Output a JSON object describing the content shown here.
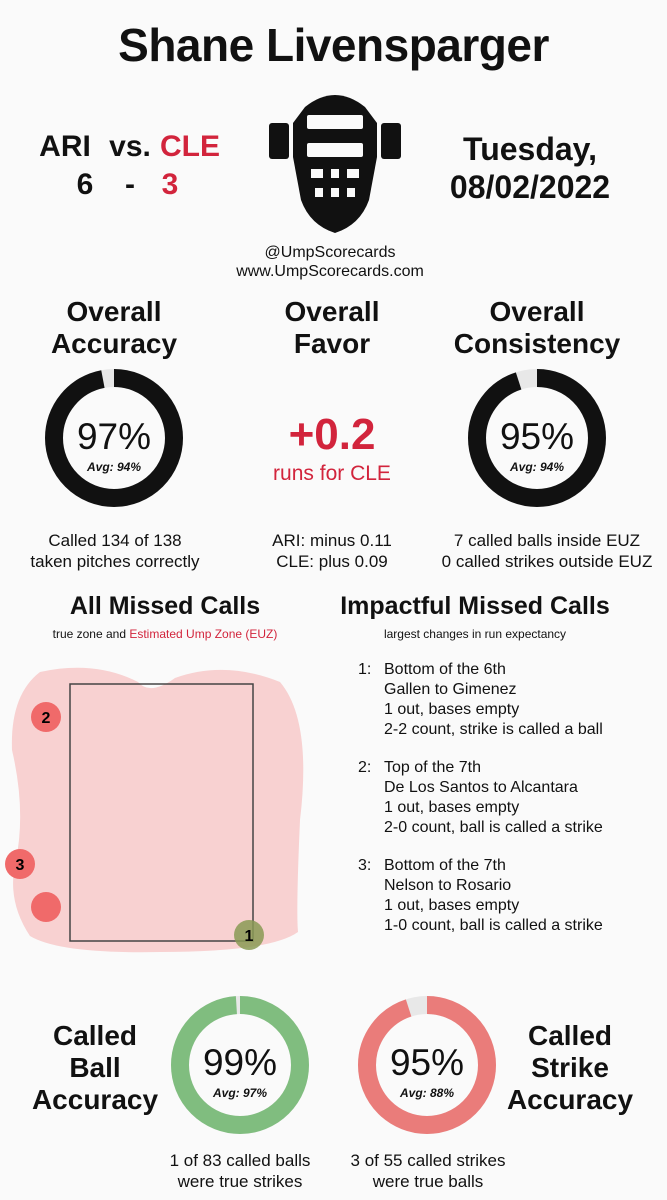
{
  "umpire": "Shane Livensparger",
  "game": {
    "away_team": "ARI",
    "vs": "vs.",
    "home_team": "CLE",
    "away_score": "6",
    "dash": "-",
    "home_score": "3",
    "day": "Tuesday,",
    "date": "08/02/2022"
  },
  "credits": {
    "handle": "@UmpScorecards",
    "site": "www.UmpScorecards.com"
  },
  "accuracy": {
    "title1": "Overall",
    "title2": "Accuracy",
    "value": "97%",
    "avg": "Avg: 94%",
    "fraction": 0.97,
    "desc1": "Called 134 of 138",
    "desc2": "taken pitches correctly"
  },
  "favor": {
    "title1": "Overall",
    "title2": "Favor",
    "value": "+0.2",
    "sub": "runs for CLE",
    "desc1": "ARI: minus 0.11",
    "desc2": "CLE: plus 0.09"
  },
  "consistency": {
    "title1": "Overall",
    "title2": "Consistency",
    "value": "95%",
    "avg": "Avg: 94%",
    "fraction": 0.95,
    "desc1": "7 called balls inside EUZ",
    "desc2": "0 called strikes outside EUZ"
  },
  "missed_calls": {
    "title": "All Missed Calls",
    "sub_plain": "true zone and",
    "sub_red": "Estimated Ump Zone (EUZ)",
    "pitches": [
      {
        "label": "1",
        "type": "ball-called"
      },
      {
        "label": "2",
        "type": "strike-called"
      },
      {
        "label": "3",
        "type": "strike-called"
      },
      {
        "label": "",
        "type": "strike-called"
      }
    ]
  },
  "impactful": {
    "title": "Impactful Missed Calls",
    "sub": "largest changes in run expectancy",
    "items": [
      {
        "num": "1:",
        "inning": "Bottom of the 6th",
        "matchup": "Gallen to Gimenez",
        "situation": "1 out, bases empty",
        "call": "2-2 count, strike is called a ball"
      },
      {
        "num": "2:",
        "inning": "Top of the 7th",
        "matchup": "De Los Santos to Alcantara",
        "situation": "1 out, bases empty",
        "call": "2-0 count, ball is called a strike"
      },
      {
        "num": "3:",
        "inning": "Bottom of the 7th",
        "matchup": "Nelson to Rosario",
        "situation": "1 out, bases empty",
        "call": "1-0 count, ball is called a strike"
      }
    ]
  },
  "ball_accuracy": {
    "title1": "Called",
    "title2": "Ball",
    "title3": "Accuracy",
    "value": "99%",
    "avg": "Avg: 97%",
    "fraction": 0.99,
    "desc1": "1 of 83 called balls",
    "desc2": "were true strikes"
  },
  "strike_accuracy": {
    "title1": "Called",
    "title2": "Strike",
    "title3": "Accuracy",
    "value": "95%",
    "avg": "Avg: 88%",
    "fraction": 0.95,
    "desc1": "3 of 55 called strikes",
    "desc2": "were true balls"
  },
  "colors": {
    "red": "#d2243c",
    "ring": "#111111",
    "ball_ring": "#80bd7f",
    "strike_ring": "#ea7c7a",
    "euz_fill": "#f7c9c9",
    "missed_strike": "#f06a6a",
    "missed_ball": "#8a9a55"
  }
}
